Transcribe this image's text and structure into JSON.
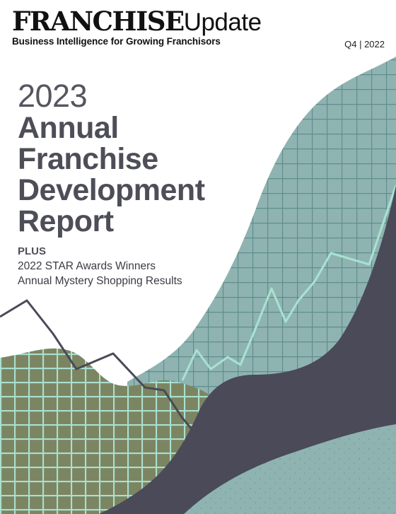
{
  "masthead": {
    "brand_main": "FRANCHISE",
    "brand_sub": "Update",
    "tagline": "Business Intelligence for Growing Franchisors",
    "issue": "Q4 | 2022"
  },
  "headline": {
    "year": "2023",
    "lines": [
      "Annual",
      "Franchise",
      "Development",
      "Report"
    ]
  },
  "plus": {
    "label": "PLUS",
    "items": [
      "2022 STAR Awards Winners",
      "Annual Mystery Shopping Results"
    ]
  },
  "colors": {
    "teal": "#8fb3b1",
    "olive": "#7c8562",
    "dark": "#4a4a58",
    "mint_line": "#a8e2d2",
    "title_text": "#4d4e58"
  }
}
